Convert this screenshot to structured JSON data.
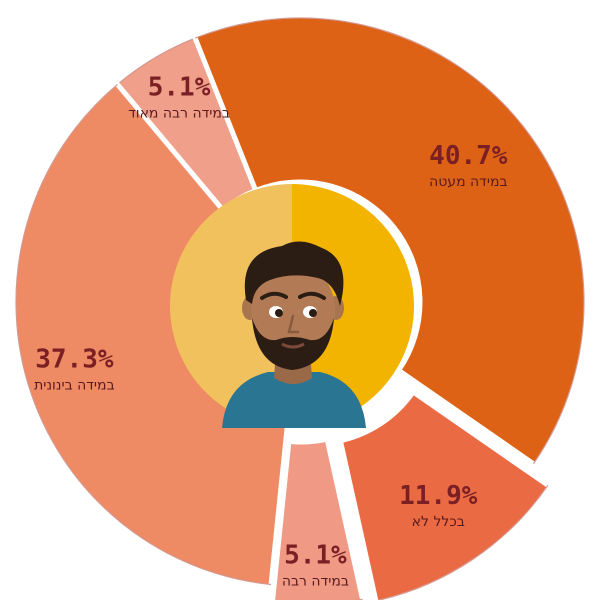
{
  "chart_data": {
    "type": "pie",
    "style": "donut with exploded slices and person illustration in the center",
    "slices": [
      {
        "label": "במידה רבה מאוד",
        "display": "5.1%",
        "value": 5.1,
        "color": "#f0a08a"
      },
      {
        "label": "במידה מעטה",
        "display": "40.7%",
        "value": 40.7,
        "color": "#dd6216"
      },
      {
        "label": "בכלל לא",
        "display": "11.9%",
        "value": 11.9,
        "color": "#ea6a43"
      },
      {
        "label": "במידה רבה",
        "display": "5.1%",
        "value": 5.1,
        "color": "#f09a85"
      },
      {
        "label": "במידה בינונית",
        "display": "37.3%",
        "value": 37.3,
        "color": "#ef8b64"
      }
    ]
  },
  "center": {
    "left_color": "#f1c15d",
    "right_color": "#f3b400",
    "icon": "man-avatar-icon"
  }
}
